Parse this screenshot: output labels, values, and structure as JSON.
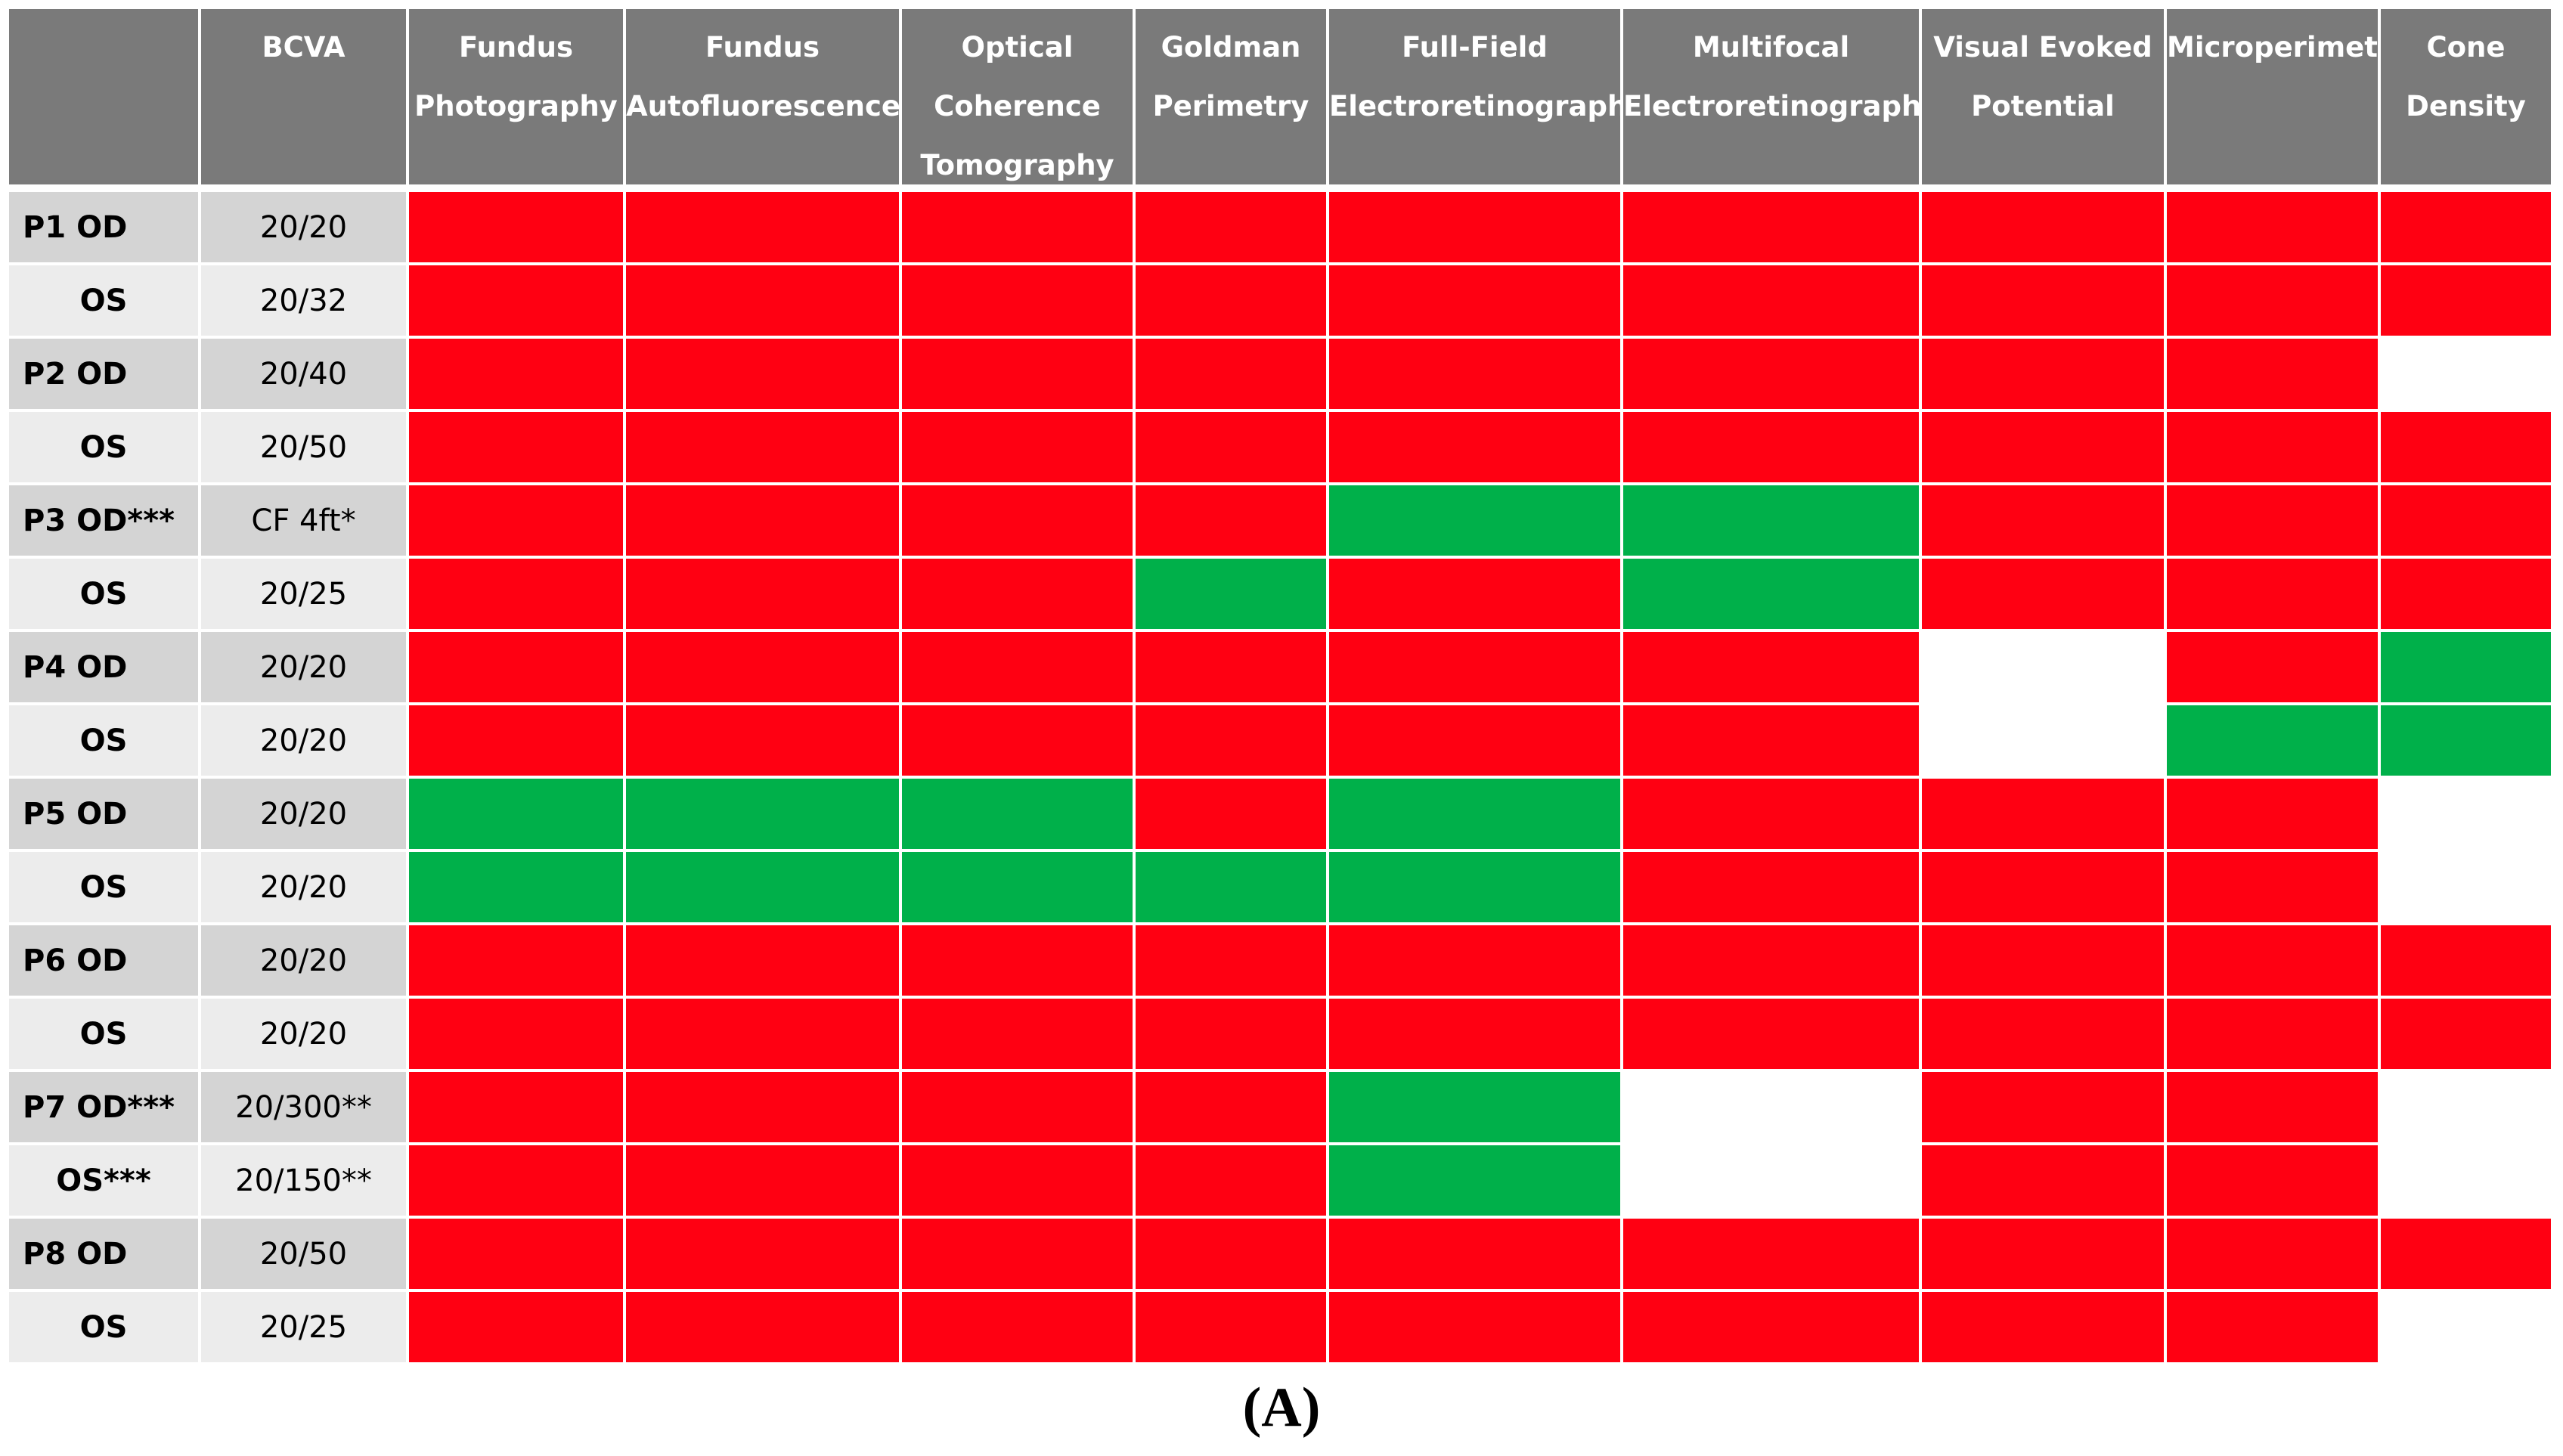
{
  "colors": {
    "header_bg": "#7a7a7a",
    "header_text": "#ffffff",
    "row_dark": "#d4d4d4",
    "row_light": "#ececec",
    "red": "#ff0012",
    "green": "#00b04a",
    "blank": "#ffffff",
    "gridline": "#ffffff"
  },
  "chart_data": {
    "type": "table",
    "legend": {
      "R": "red",
      "G": "green",
      "-": "blank"
    },
    "corner_label": "",
    "bcva_header": "BCVA",
    "columns": [
      [
        "Fundus",
        "Photography"
      ],
      [
        "Fundus",
        "Autofluorescence"
      ],
      [
        "Optical",
        "Coherence",
        "Tomography"
      ],
      [
        "Goldman",
        "Perimetry"
      ],
      [
        "Full-Field",
        "Electroretinography"
      ],
      [
        "Multifocal",
        "Electroretinography"
      ],
      [
        "Visual Evoked",
        "Potential"
      ],
      [
        "Microperimetry"
      ],
      [
        "Cone",
        "Density"
      ]
    ],
    "rows": [
      {
        "label": "P1 OD",
        "bcva": "20/20",
        "cells": [
          "R",
          "R",
          "R",
          "R",
          "R",
          "R",
          "R",
          "R",
          "R"
        ]
      },
      {
        "label": "OS",
        "bcva": "20/32",
        "cells": [
          "R",
          "R",
          "R",
          "R",
          "R",
          "R",
          "R",
          "R",
          "R"
        ]
      },
      {
        "label": "P2 OD",
        "bcva": "20/40",
        "cells": [
          "R",
          "R",
          "R",
          "R",
          "R",
          "R",
          "R",
          "R",
          "-"
        ]
      },
      {
        "label": "OS",
        "bcva": "20/50",
        "cells": [
          "R",
          "R",
          "R",
          "R",
          "R",
          "R",
          "R",
          "R",
          "R"
        ]
      },
      {
        "label": "P3 OD***",
        "bcva": "CF 4ft*",
        "cells": [
          "R",
          "R",
          "R",
          "R",
          "G",
          "G",
          "R",
          "R",
          "R"
        ]
      },
      {
        "label": "OS",
        "bcva": "20/25",
        "cells": [
          "R",
          "R",
          "R",
          "G",
          "R",
          "G",
          "R",
          "R",
          "R"
        ]
      },
      {
        "label": "P4 OD",
        "bcva": "20/20",
        "cells": [
          "R",
          "R",
          "R",
          "R",
          "R",
          "R",
          "-",
          "R",
          "G"
        ]
      },
      {
        "label": "OS",
        "bcva": "20/20",
        "cells": [
          "R",
          "R",
          "R",
          "R",
          "R",
          "R",
          "-",
          "G",
          "G"
        ]
      },
      {
        "label": "P5 OD",
        "bcva": "20/20",
        "cells": [
          "G",
          "G",
          "G",
          "R",
          "G",
          "R",
          "R",
          "R",
          "-"
        ]
      },
      {
        "label": "OS",
        "bcva": "20/20",
        "cells": [
          "G",
          "G",
          "G",
          "G",
          "G",
          "R",
          "R",
          "R",
          "-"
        ]
      },
      {
        "label": "P6 OD",
        "bcva": "20/20",
        "cells": [
          "R",
          "R",
          "R",
          "R",
          "R",
          "R",
          "R",
          "R",
          "R"
        ]
      },
      {
        "label": "OS",
        "bcva": "20/20",
        "cells": [
          "R",
          "R",
          "R",
          "R",
          "R",
          "R",
          "R",
          "R",
          "R"
        ]
      },
      {
        "label": "P7 OD***",
        "bcva": "20/300**",
        "cells": [
          "R",
          "R",
          "R",
          "R",
          "G",
          "-",
          "R",
          "R",
          "-"
        ]
      },
      {
        "label": "OS***",
        "bcva": "20/150**",
        "cells": [
          "R",
          "R",
          "R",
          "R",
          "G",
          "-",
          "R",
          "R",
          "-"
        ]
      },
      {
        "label": "P8 OD",
        "bcva": "20/50",
        "cells": [
          "R",
          "R",
          "R",
          "R",
          "R",
          "R",
          "R",
          "R",
          "R"
        ]
      },
      {
        "label": "OS",
        "bcva": "20/25",
        "cells": [
          "R",
          "R",
          "R",
          "R",
          "R",
          "R",
          "R",
          "R",
          "-"
        ]
      }
    ],
    "caption": "(A)"
  }
}
